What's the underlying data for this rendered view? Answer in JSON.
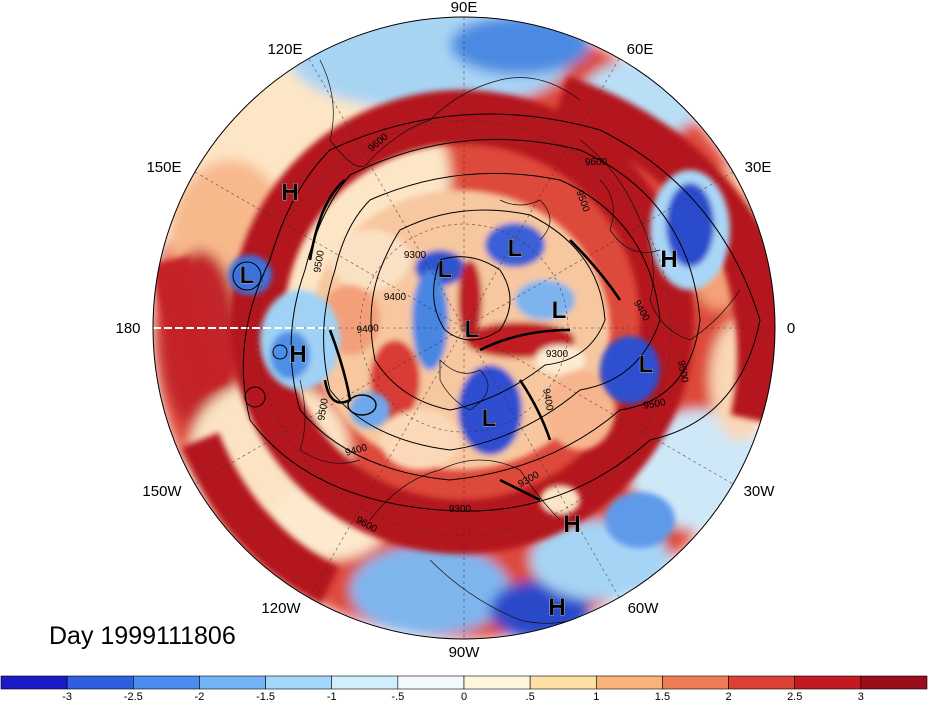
{
  "title": "Day 1999111806",
  "longitude_labels": {
    "lon_90e": "90E",
    "lon_120e": "120E",
    "lon_60e": "60E",
    "lon_150e": "150E",
    "lon_30e": "30E",
    "lon_180": "180",
    "lon_0": "0",
    "lon_150w": "150W",
    "lon_30w": "30W",
    "lon_120w": "120W",
    "lon_60w": "60W",
    "lon_90w": "90W"
  },
  "pressure_systems": [
    {
      "type": "H",
      "label": "H"
    },
    {
      "type": "L",
      "label": "L"
    },
    {
      "type": "H",
      "label": "H"
    },
    {
      "type": "L",
      "label": "L"
    },
    {
      "type": "L",
      "label": "L"
    },
    {
      "type": "H",
      "label": "H"
    },
    {
      "type": "L",
      "label": "L"
    },
    {
      "type": "L",
      "label": "L"
    },
    {
      "type": "L",
      "label": "L"
    },
    {
      "type": "L",
      "label": "L"
    },
    {
      "type": "H",
      "label": "H"
    },
    {
      "type": "H",
      "label": "H"
    }
  ],
  "contour_labels": [
    "9600",
    "9600",
    "9500",
    "9500",
    "9400",
    "9400",
    "9300",
    "9400",
    "9500",
    "9500",
    "9300",
    "9400",
    "9500",
    "9400",
    "9300",
    "9300",
    "9600"
  ],
  "colorbar": {
    "ticks": [
      "-3",
      "-2.5",
      "-2",
      "-1.5",
      "-1",
      "-.5",
      "0",
      ".5",
      "1",
      "1.5",
      "2",
      "2.5",
      "3"
    ],
    "colors": [
      "#1a1ac8",
      "#2f5ee0",
      "#4a8cf0",
      "#72b4f7",
      "#a2d7fb",
      "#d1eefd",
      "#f3fafe",
      "#fff6dc",
      "#fde0a6",
      "#f8b27a",
      "#ee7d57",
      "#dd4035",
      "#c11a22",
      "#9a0d1b"
    ]
  },
  "colors": {
    "deep_red": "#b01624",
    "red": "#d23a33",
    "orange": "#f18b62",
    "cream": "#fde9c8",
    "white": "#ffffff",
    "light_blue": "#a9d8f5",
    "blue": "#4d90e6",
    "deep_blue": "#1f35c4"
  },
  "contour_levels": [
    "9300",
    "9400",
    "9500",
    "9600"
  ]
}
